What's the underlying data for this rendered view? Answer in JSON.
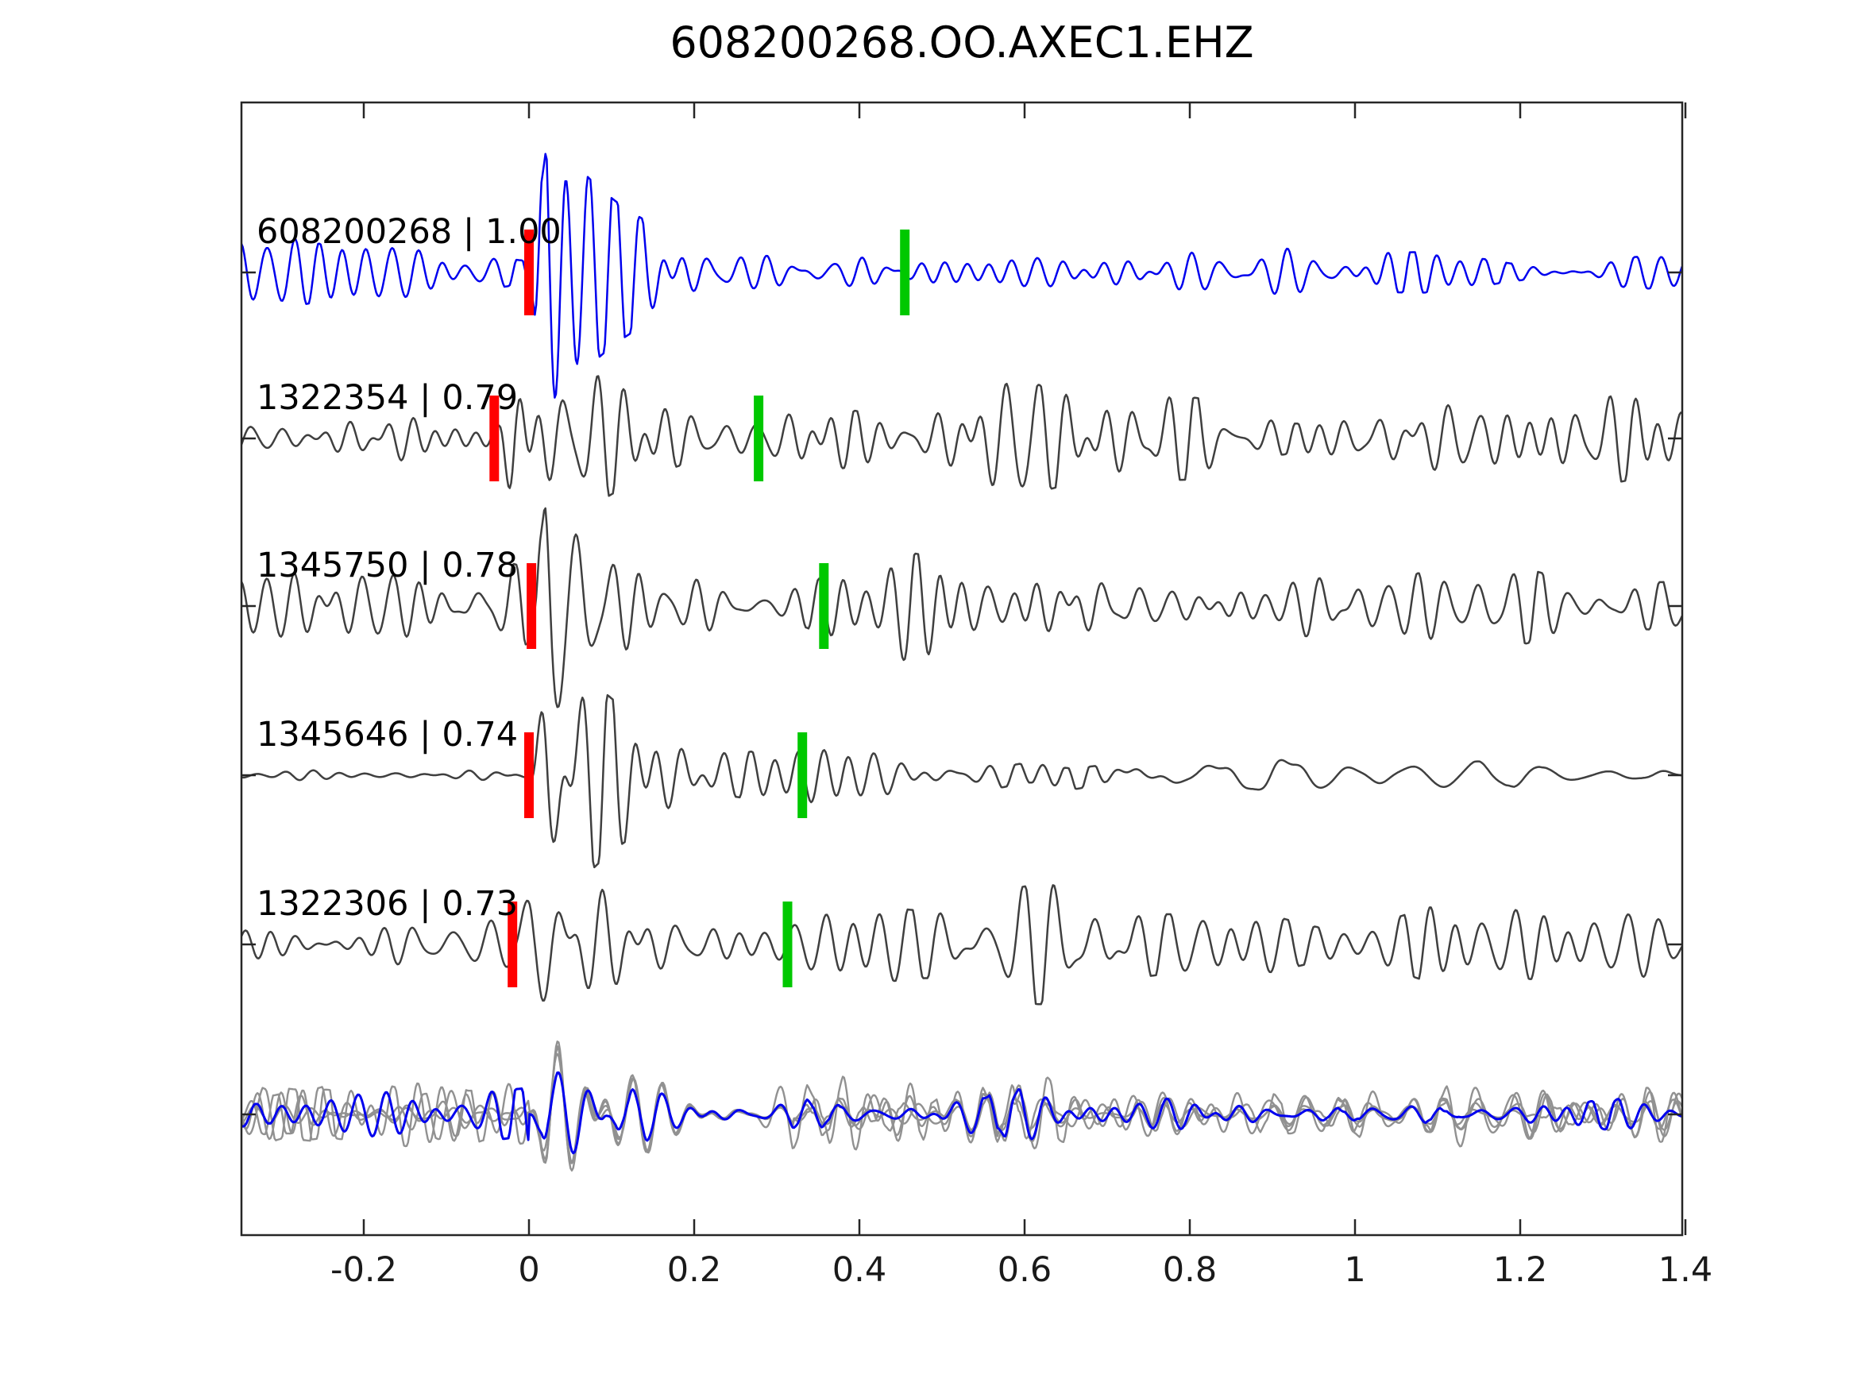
{
  "title": "608200268.OO.AXEC1.EHZ",
  "colors": {
    "reference_trace": "#0000ee",
    "matched_trace": "#3f3f3f",
    "overlay_gray": "#919191",
    "pick_marker": "#ff0000",
    "assoc_marker": "#00c800",
    "frame": "#262626",
    "text": "#000000",
    "background": "#ffffff"
  },
  "chart_data": {
    "type": "line",
    "title": "608200268.OO.AXEC1.EHZ",
    "xlabel": "",
    "ylabel": "",
    "xlim": [
      -0.348,
      1.396
    ],
    "x_ticks": [
      -0.2,
      0,
      0.2,
      0.4,
      0.6,
      0.8,
      1,
      1.2,
      1.4
    ],
    "x_tick_labels": [
      "-0.2",
      "0",
      "0.2",
      "0.4",
      "0.6",
      "0.8",
      "1",
      "1.2",
      "1.4"
    ],
    "grid": false,
    "legend_position": "none",
    "description": "Template-matching seismogram comparison: reference event 608200268 (blue) against four matched detections (dark gray), each with a red pick marker near t=0 and a green association marker; bottom row overlays all five aligned traces (grays + blue).",
    "traces": [
      {
        "label": "608200268 | 1.00",
        "event_id": "608200268",
        "similarity": 1.0,
        "color": "#0000ee",
        "row": 0,
        "pick_time": 0.0,
        "assoc_time": 0.455,
        "waveform": {
          "seed": 11,
          "onset": 0.0,
          "noise_amp": 33,
          "burst_amp": 122,
          "coda_amp": 30,
          "late_decay": 0.45,
          "f_lo": 24,
          "f_hi": 46,
          "smooth_late": false
        }
      },
      {
        "label": "1322354 | 0.79",
        "event_id": "1322354",
        "similarity": 0.79,
        "color": "#3f3f3f",
        "row": 1,
        "pick_time": -0.042,
        "assoc_time": 0.278,
        "waveform": {
          "seed": 22,
          "onset": -0.042,
          "noise_amp": 31,
          "burst_amp": 132,
          "coda_amp": 47,
          "late_decay": 0.28,
          "f_lo": 22,
          "f_hi": 44,
          "smooth_late": false
        }
      },
      {
        "label": "1345750 | 0.78",
        "event_id": "1345750",
        "similarity": 0.78,
        "color": "#3f3f3f",
        "row": 2,
        "pick_time": 0.003,
        "assoc_time": 0.357,
        "waveform": {
          "seed": 33,
          "onset": 0.003,
          "noise_amp": 37,
          "burst_amp": 128,
          "coda_amp": 45,
          "late_decay": 0.35,
          "f_lo": 22,
          "f_hi": 42,
          "smooth_late": false
        }
      },
      {
        "label": "1345646 | 0.74",
        "event_id": "1345646",
        "similarity": 0.74,
        "color": "#3f3f3f",
        "row": 3,
        "pick_time": 0.0,
        "assoc_time": 0.331,
        "waveform": {
          "seed": 47,
          "onset": 0.0,
          "noise_amp": 7,
          "burst_amp": 126,
          "coda_amp": 40,
          "late_decay": 0.75,
          "f_lo": 22,
          "f_hi": 40,
          "smooth_late": true
        }
      },
      {
        "label": "1322306 | 0.73",
        "event_id": "1322306",
        "similarity": 0.73,
        "color": "#3f3f3f",
        "row": 4,
        "pick_time": -0.02,
        "assoc_time": 0.313,
        "waveform": {
          "seed": 55,
          "onset": -0.02,
          "noise_amp": 41,
          "burst_amp": 138,
          "coda_amp": 48,
          "late_decay": 0.3,
          "f_lo": 20,
          "f_hi": 40,
          "smooth_late": false
        }
      }
    ],
    "overlay": {
      "row": 5,
      "description": "All five traces aligned on pick time and overplotted",
      "onset": 0.0,
      "common_seed": 77,
      "common_f_lo": 23,
      "common_f_hi": 34,
      "blue": {
        "color": "#0000ee",
        "seed": 11,
        "noise_amp": 27,
        "burst_amp": 104,
        "coda_amp": 27,
        "late_decay": 0.45
      },
      "gray": {
        "color": "#919191",
        "members": [
          "1322354",
          "1345750",
          "1345646",
          "1322306"
        ],
        "seeds": [
          201,
          202,
          203,
          204
        ],
        "noise_amp": 32,
        "burst_amp": 118,
        "coda_amp": 42,
        "late_decay": 0.3
      }
    }
  }
}
